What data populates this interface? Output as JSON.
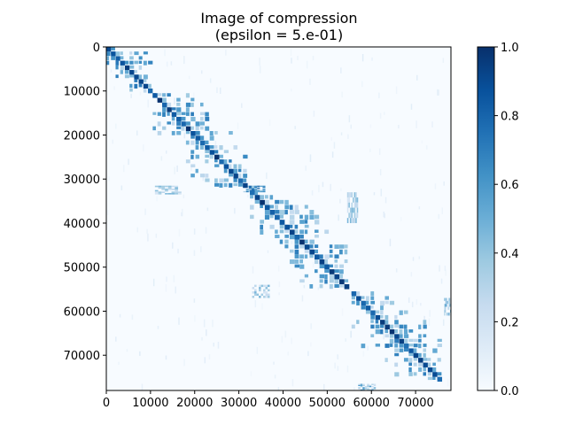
{
  "chart_data": {
    "type": "heatmap",
    "title": "Image of compression",
    "subtitle": "(epsilon = 5.e-01)",
    "xlabel": "",
    "ylabel": "",
    "matrix_size": 78000,
    "x_ticks": [
      "0",
      "10000",
      "20000",
      "30000",
      "40000",
      "50000",
      "60000",
      "70000"
    ],
    "y_ticks": [
      "0",
      "10000",
      "20000",
      "30000",
      "40000",
      "50000",
      "60000",
      "70000"
    ],
    "x_tick_values": [
      0,
      10000,
      20000,
      30000,
      40000,
      50000,
      60000,
      70000
    ],
    "y_tick_values": [
      0,
      10000,
      20000,
      30000,
      40000,
      50000,
      60000,
      70000
    ],
    "xlim": [
      0,
      78000
    ],
    "ylim": [
      78000,
      0
    ],
    "y_axis_inverted": true,
    "colormap": "Blues",
    "colorbar_range": [
      0,
      1.0
    ],
    "colorbar_ticks": [
      "0.0",
      "0.2",
      "0.4",
      "0.6",
      "0.8",
      "1.0"
    ],
    "colorbar_tick_values": [
      0,
      0.2,
      0.4,
      0.6,
      0.8,
      1.0
    ],
    "grid": false,
    "diagonal_blocks": [
      {
        "start": 0,
        "end": 10500,
        "value": 0.7
      },
      {
        "start": 10500,
        "end": 32000,
        "value": 0.65
      },
      {
        "start": 32500,
        "end": 55000,
        "value": 0.65
      },
      {
        "start": 55500,
        "end": 76000,
        "value": 0.65
      }
    ],
    "off_diagonal_patches": [
      {
        "x": [
          31000,
          36000
        ],
        "y": [
          31500,
          33000
        ],
        "value": 0.7
      },
      {
        "x": [
          11000,
          17000
        ],
        "y": [
          31500,
          33500
        ],
        "value": 0.4
      },
      {
        "x": [
          54500,
          57000
        ],
        "y": [
          33000,
          40000
        ],
        "value": 0.4
      },
      {
        "x": [
          33000,
          37000
        ],
        "y": [
          54000,
          57000
        ],
        "value": 0.4
      },
      {
        "x": [
          76500,
          78000
        ],
        "y": [
          57000,
          61000
        ],
        "value": 0.5
      },
      {
        "x": [
          57000,
          61000
        ],
        "y": [
          76500,
          78000
        ],
        "value": 0.5
      }
    ],
    "background_value": 0.03
  },
  "colors": {
    "background": "#f7fbff",
    "colormap_stops": [
      "#f7fbff",
      "#deebf7",
      "#c6dbef",
      "#9ecae1",
      "#6baed6",
      "#4292c6",
      "#2171b5",
      "#08519c",
      "#08306b"
    ]
  }
}
